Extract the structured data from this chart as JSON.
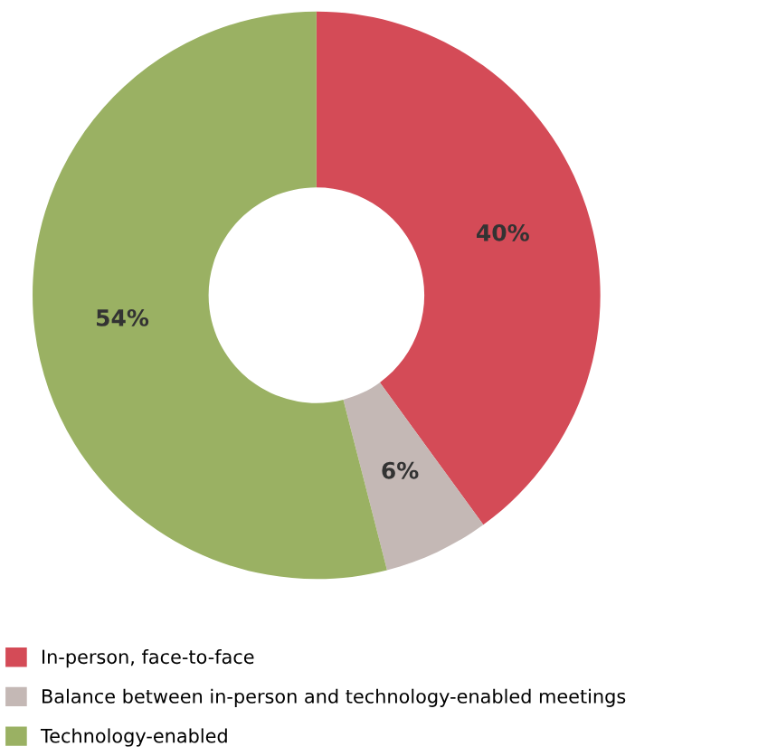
{
  "chart_data": {
    "type": "donut",
    "categories": [
      "In-person, face-to-face",
      "Balance between in-person and technology-enabled meetings",
      "Technology-enabled"
    ],
    "values": [
      40,
      6,
      54
    ],
    "colors": [
      "#d44b57",
      "#c4b8b5",
      "#9ab163"
    ],
    "value_labels": [
      "40%",
      "6%",
      "54%"
    ],
    "legend": "bottom"
  }
}
